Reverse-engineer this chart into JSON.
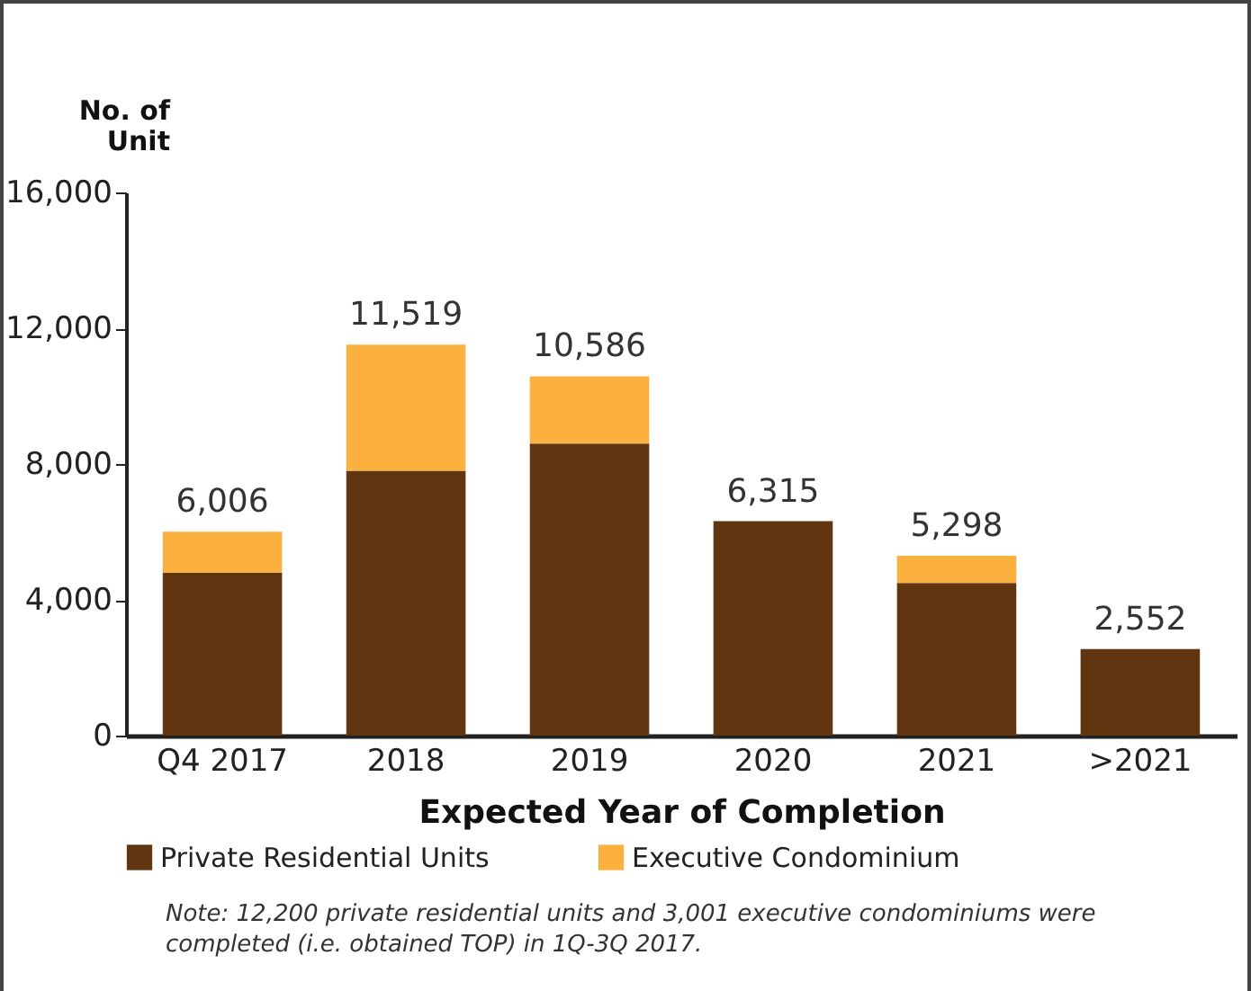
{
  "chart_data": {
    "type": "bar",
    "stacked": true,
    "xlabel": "Expected Year of Completion",
    "ylabel": "No. of\nUnit",
    "categories": [
      "Q4 2017",
      "2018",
      "2019",
      "2020",
      "2021",
      ">2021"
    ],
    "series": [
      {
        "name": "Private Residential Units",
        "color": "#623511",
        "values": [
          4800,
          7800,
          8600,
          6315,
          4500,
          2552
        ]
      },
      {
        "name": "Executive Condominium",
        "color": "#fbb040",
        "values": [
          1206,
          3719,
          1986,
          null,
          798,
          null
        ]
      }
    ],
    "totals": [
      "6,006",
      "11,519",
      "10,586",
      "6,315",
      "5,298",
      "2,552"
    ],
    "ylim": [
      0,
      16000
    ],
    "yticks": [
      0,
      {
        "value": 4000,
        "label": "4,000"
      },
      {
        "value": 8000,
        "label": "8,000"
      },
      {
        "value": 12000,
        "label": "12,000"
      },
      {
        "value": 16000,
        "label": "16,000"
      }
    ],
    "grid": false,
    "legend": "bottom",
    "annotations": [
      "Note: 12,200 private residential units and 3,001 executive condominiums were completed (i.e. obtained TOP) in 1Q-3Q 2017."
    ]
  }
}
